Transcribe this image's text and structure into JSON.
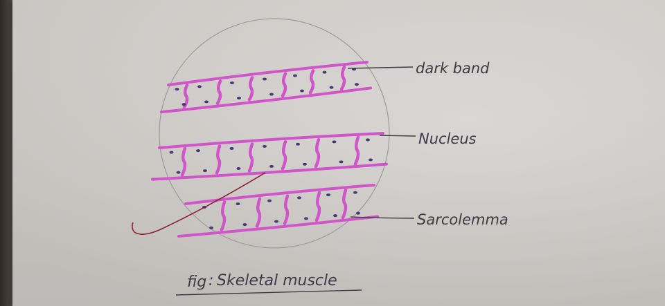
{
  "labels": {
    "dark_band": "dark band",
    "nucleus": "Nucleus",
    "sarcolemma": "Sarcolemma"
  },
  "caption": {
    "prefix": "fig",
    "separator": ":",
    "title": "Skeletal muscle"
  },
  "colors": {
    "fiber": "#d055c8",
    "nucleus": "#4a3a78",
    "pencil": "#8a8a8e",
    "ink": "#3c3b47",
    "pen_mark": "#8b1f3a"
  }
}
